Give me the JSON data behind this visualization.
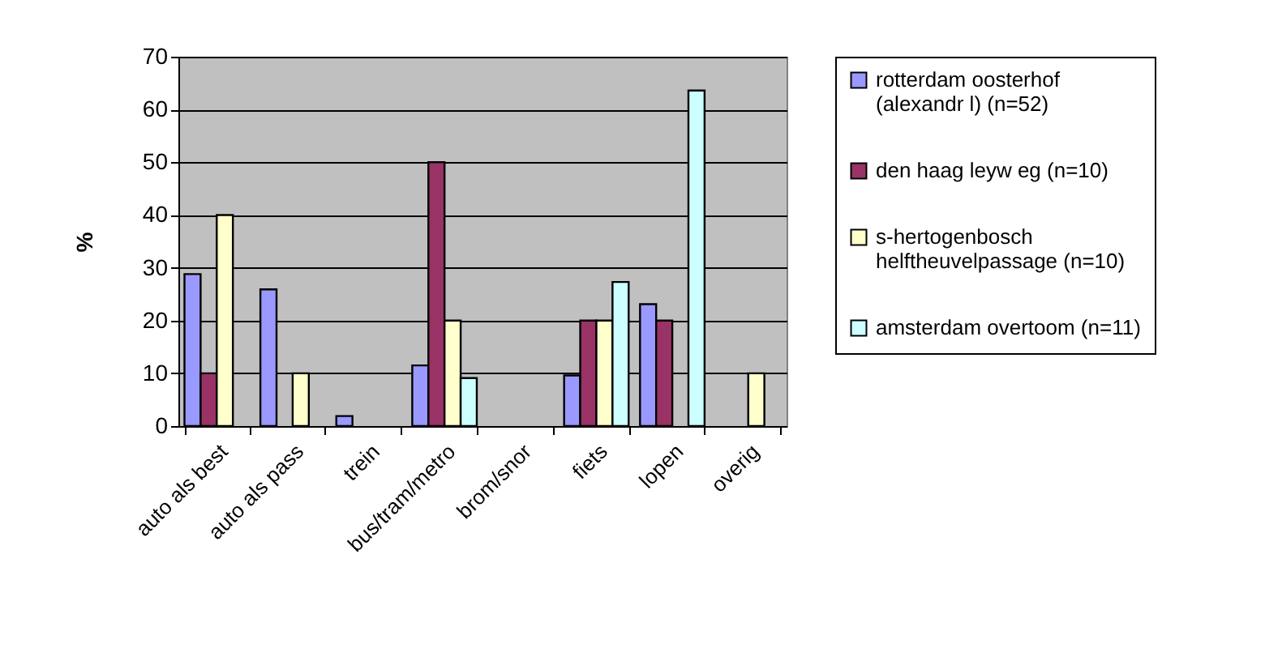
{
  "chart_data": {
    "type": "bar",
    "ylabel": "%",
    "categories": [
      "auto als best",
      "auto als pass",
      "trein",
      "bus/tram/metro",
      "brom/snor",
      "fiets",
      "lopen",
      "overig"
    ],
    "series": [
      {
        "name": "rotterdam oosterhof (alexandr l) (n=52)",
        "color": "#9999ff",
        "values": [
          28.8,
          25.9,
          1.9,
          11.5,
          null,
          9.6,
          23.1,
          null
        ]
      },
      {
        "name": "den haag leyw eg (n=10)",
        "color": "#993366",
        "values": [
          10,
          null,
          null,
          50,
          null,
          20,
          20,
          null
        ]
      },
      {
        "name": "s-hertogenbosch helftheuvelpassage (n=10)",
        "color": "#ffffcc",
        "values": [
          40,
          10,
          null,
          20,
          null,
          20,
          null,
          10
        ]
      },
      {
        "name": "amsterdam overtoom (n=11)",
        "color": "#ccffff",
        "values": [
          null,
          null,
          null,
          9.1,
          null,
          27.3,
          63.6,
          null
        ]
      }
    ],
    "ylim": [
      0,
      70
    ],
    "yticks": [
      0,
      10,
      20,
      30,
      40,
      50,
      60,
      70
    ],
    "grid": "y",
    "legend": "right"
  }
}
